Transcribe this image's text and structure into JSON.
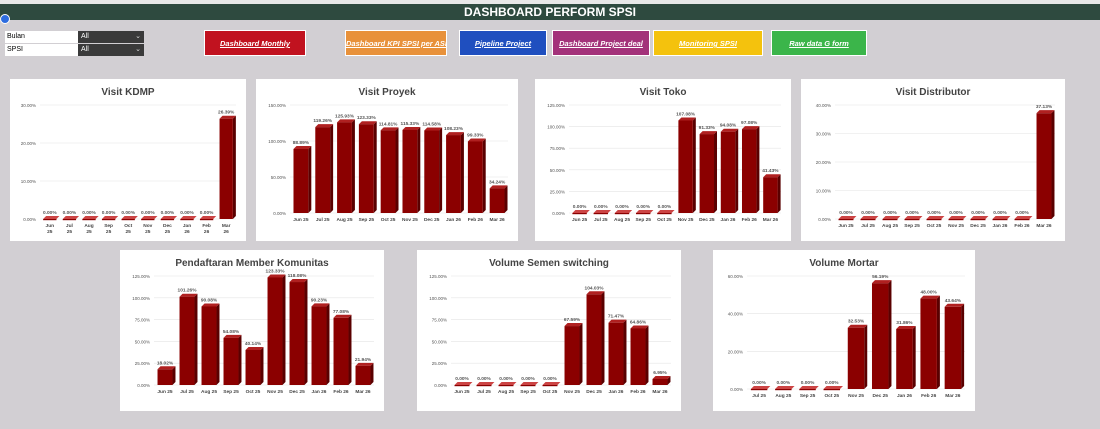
{
  "header": {
    "title": "DASHBOARD PERFORM SPSI"
  },
  "filters": [
    {
      "label": "Bulan",
      "value": "All"
    },
    {
      "label": "SPSI",
      "value": "All"
    }
  ],
  "nav_buttons": [
    {
      "label": "Dashboard Monthly",
      "bg": "#c1121f",
      "color": "#ffffff"
    },
    {
      "label": "Dashboard KPI SPSI per ASM",
      "bg": "#e8913a",
      "color": "#ffffff"
    },
    {
      "label": "Pipeline Project",
      "bg": "#1f4fbf",
      "color": "#ffffff"
    },
    {
      "label": "Dashboard Project deal",
      "bg": "#a3327a",
      "color": "#ffffff"
    },
    {
      "label": "Monitoring SPSI",
      "bg": "#f4c20d",
      "color": "#ffffff"
    },
    {
      "label": "Raw data G form",
      "bg": "#3bb54a",
      "color": "#ffffff"
    }
  ],
  "chart_data": [
    {
      "type": "bar",
      "title": "Visit KDMP",
      "categories": [
        "Jun 25",
        "Jul 25",
        "Aug 25",
        "Sep 25",
        "Oct 25",
        "Nov 25",
        "Dec 25",
        "Jan 26",
        "Feb 26",
        "Mar 26"
      ],
      "values": [
        0,
        0,
        0,
        0,
        0,
        0,
        0,
        0,
        0,
        26.39
      ],
      "labels": [
        "0.00%",
        "0.00%",
        "0.00%",
        "0.00%",
        "0.00%",
        "0.00%",
        "0.00%",
        "0.00%",
        "0.00%",
        "26.39%"
      ],
      "yticks": [
        "0.00%",
        "10.00%",
        "20.00%",
        "30.00%"
      ],
      "ylim": [
        0,
        30
      ],
      "color": "#8b0000"
    },
    {
      "type": "bar",
      "title": "Visit Proyek",
      "categories": [
        "Jun 25",
        "Jul 25",
        "Aug 25",
        "Sep 25",
        "Oct 25",
        "Nov 25",
        "Dec 25",
        "Jan 26",
        "Feb 26",
        "Mar 26"
      ],
      "values": [
        88.89,
        119.26,
        125.93,
        123.33,
        114.81,
        115.33,
        114.58,
        108.23,
        99.33,
        34.24
      ],
      "labels": [
        "88.89%",
        "119.26%",
        "125.93%",
        "123.33%",
        "114.81%",
        "115.33%",
        "114.58%",
        "108.23%",
        "99.33%",
        "34.24%"
      ],
      "yticks": [
        "0.00%",
        "50.00%",
        "100.00%",
        "150.00%"
      ],
      "ylim": [
        0,
        150
      ],
      "color": "#8b0000"
    },
    {
      "type": "bar",
      "title": "Visit Toko",
      "categories": [
        "Jun 25",
        "Jul 25",
        "Aug 25",
        "Sep 25",
        "Oct 25",
        "Nov 25",
        "Dec 25",
        "Jan 26",
        "Feb 26",
        "Mar 26"
      ],
      "values": [
        0,
        0,
        0,
        0,
        0,
        107.08,
        91.33,
        94.08,
        97.08,
        41.43
      ],
      "labels": [
        "0.00%",
        "0.00%",
        "0.00%",
        "0.00%",
        "0.00%",
        "107.08%",
        "91.33%",
        "94.08%",
        "97.08%",
        "41.43%"
      ],
      "yticks": [
        "0.00%",
        "25.00%",
        "50.00%",
        "75.00%",
        "100.00%",
        "125.00%"
      ],
      "ylim": [
        0,
        125
      ],
      "color": "#8b0000"
    },
    {
      "type": "bar",
      "title": "Visit Distributor",
      "categories": [
        "Jun 25",
        "Jul 25",
        "Aug 25",
        "Sep 25",
        "Oct 25",
        "Nov 25",
        "Dec 25",
        "Jan 26",
        "Feb 26",
        "Mar 26"
      ],
      "values": [
        0,
        0,
        0,
        0,
        0,
        0,
        0,
        0,
        0,
        37.13
      ],
      "labels": [
        "0.00%",
        "0.00%",
        "0.00%",
        "0.00%",
        "0.00%",
        "0.00%",
        "0.00%",
        "0.00%",
        "0.00%",
        "37.13%"
      ],
      "yticks": [
        "0.00%",
        "10.00%",
        "20.00%",
        "30.00%",
        "40.00%"
      ],
      "ylim": [
        0,
        40
      ],
      "color": "#8b0000"
    },
    {
      "type": "bar",
      "title": "Pendaftaran Member Komunitas",
      "categories": [
        "Jun 25",
        "Jul 25",
        "Aug 25",
        "Sep 25",
        "Oct 25",
        "Nov 25",
        "Dec 25",
        "Jan 26",
        "Feb 26",
        "Mar 26"
      ],
      "values": [
        18.02,
        101.26,
        90.08,
        54.08,
        40.14,
        123.33,
        118.08,
        90.23,
        77.08,
        21.94
      ],
      "labels": [
        "18.02%",
        "101.26%",
        "90.08%",
        "54.08%",
        "40.14%",
        "123.33%",
        "118.08%",
        "90.23%",
        "77.08%",
        "21.94%"
      ],
      "yticks": [
        "0.00%",
        "25.00%",
        "50.00%",
        "75.00%",
        "100.00%",
        "125.00%"
      ],
      "ylim": [
        0,
        125
      ],
      "color": "#8b0000"
    },
    {
      "type": "bar",
      "title": "Volume Semen switching",
      "categories": [
        "Jun 25",
        "Jul 25",
        "Aug 25",
        "Sep 25",
        "Oct 25",
        "Nov 25",
        "Dec 25",
        "Jan 26",
        "Feb 26",
        "Mar 26"
      ],
      "values": [
        0,
        0,
        0,
        0,
        0,
        67.59,
        104.03,
        71.47,
        64.86,
        6.95
      ],
      "labels": [
        "0.00%",
        "0.00%",
        "0.00%",
        "0.00%",
        "0.00%",
        "67.59%",
        "104.03%",
        "71.47%",
        "64.86%",
        "6.95%"
      ],
      "yticks": [
        "0.00%",
        "25.00%",
        "50.00%",
        "75.00%",
        "100.00%",
        "125.00%"
      ],
      "ylim": [
        0,
        125
      ],
      "color": "#8b0000"
    },
    {
      "type": "bar",
      "title": "Volume Mortar",
      "categories": [
        "Jul 25",
        "Aug 25",
        "Sep 25",
        "Oct 25",
        "Nov 25",
        "Dec 25",
        "Jan 26",
        "Feb 26",
        "Mar 26"
      ],
      "values": [
        0,
        0,
        0,
        0,
        32.53,
        56.19,
        31.86,
        48.0,
        43.64
      ],
      "labels": [
        "0.00%",
        "0.00%",
        "0.00%",
        "0.00%",
        "32.53%",
        "56.19%",
        "31.86%",
        "48.00%",
        "43.64%"
      ],
      "yticks": [
        "0.00%",
        "20.00%",
        "40.00%",
        "60.00%"
      ],
      "ylim": [
        0,
        60
      ],
      "color": "#8b0000"
    }
  ]
}
